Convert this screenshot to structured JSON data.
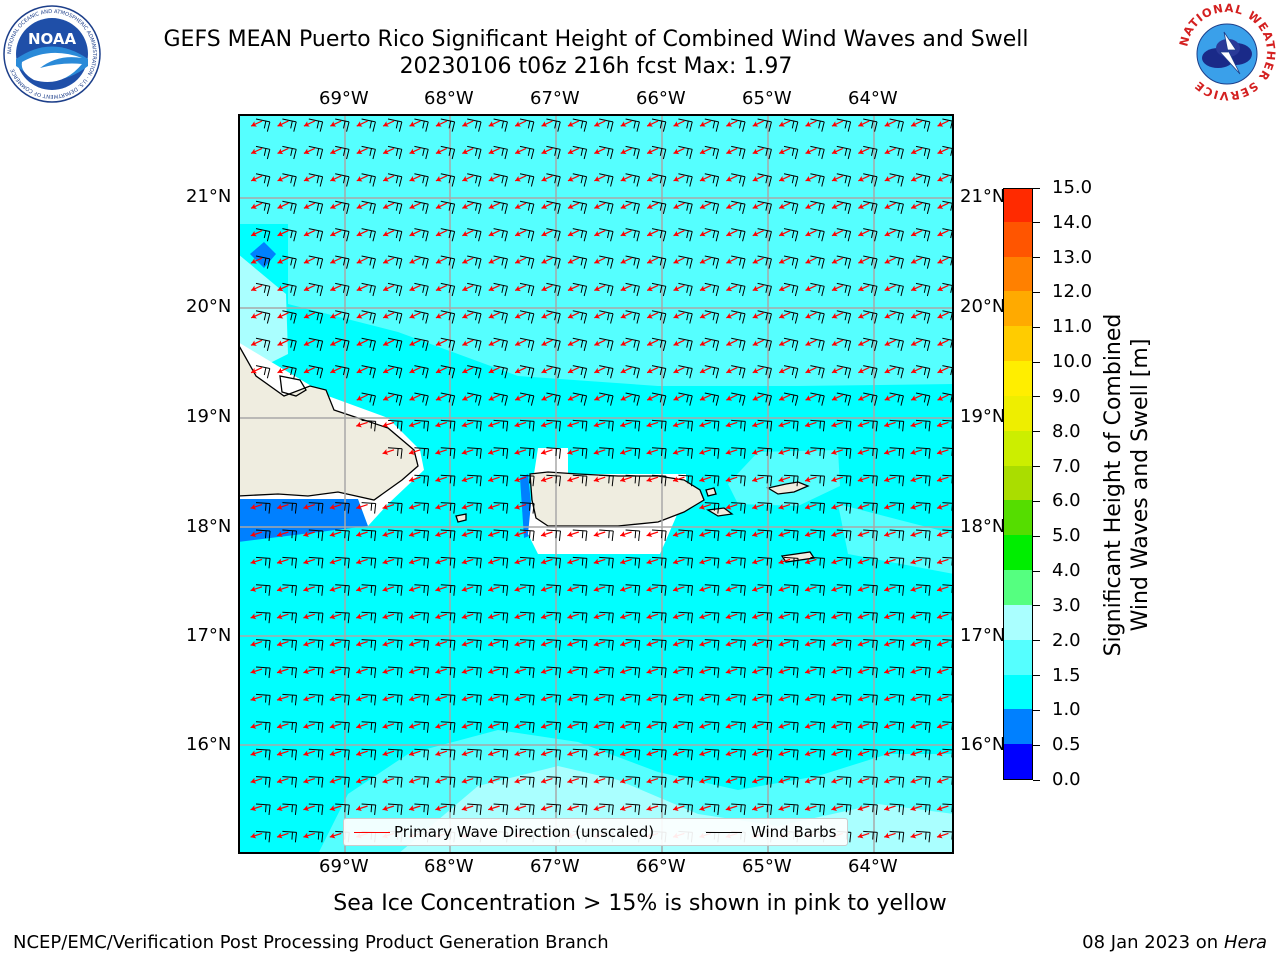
{
  "header": {
    "title_line1": "GEFS MEAN Puerto Rico Significant Height of Combined Wind Waves and Swell",
    "title_line2": "20230106 t06z 216h fcst   Max: 1.97"
  },
  "logos": [
    {
      "name": "noaa-logo",
      "text": "NOAA",
      "ring_text": "NATIONAL OCEANIC AND ATMOSPHERIC ADMINISTRATION · U.S. DEPARTMENT OF COMMERCE"
    },
    {
      "name": "nws-logo",
      "ring_text": "NATIONAL WEATHER SERVICE"
    }
  ],
  "map": {
    "lon_labels": [
      "69°W",
      "68°W",
      "67°W",
      "66°W",
      "65°W",
      "64°W"
    ],
    "lat_labels": [
      "21°N",
      "20°N",
      "19°N",
      "18°N",
      "17°N",
      "16°N"
    ],
    "colors": {
      "ocean_main": "#00ffff",
      "ocean_light": "#55ffff",
      "ocean_lighter": "#aaffff",
      "ocean_blue": "#0080ff",
      "land": "#efede0",
      "wave_arrow": "#ff0000",
      "barb": "#000000"
    }
  },
  "legend": {
    "items": [
      {
        "label": "Primary Wave Direction (unscaled)",
        "color": "#ff0000"
      },
      {
        "label": "Wind Barbs",
        "color": "#000000"
      }
    ]
  },
  "colorbar": {
    "title_line1": "Significant Height of Combined",
    "title_line2": "Wind Waves and Swell [m]",
    "ticks": [
      "0.0",
      "0.5",
      "1.0",
      "1.5",
      "2.0",
      "3.0",
      "4.0",
      "5.0",
      "6.0",
      "7.0",
      "8.0",
      "9.0",
      "10.0",
      "11.0",
      "12.0",
      "13.0",
      "14.0",
      "15.0"
    ],
    "colors": [
      "#0000ff",
      "#0080ff",
      "#00ffff",
      "#55ffff",
      "#aaffff",
      "#55ff80",
      "#00ee00",
      "#55dd00",
      "#aadd00",
      "#ccee00",
      "#eeee00",
      "#ffee00",
      "#ffcc00",
      "#ffaa00",
      "#ff8000",
      "#ff5500",
      "#ff2a00",
      "#ff0000"
    ]
  },
  "notes": {
    "sea_ice": "Sea Ice Concentration > 15% is shown in pink to yellow"
  },
  "footer": {
    "left": "NCEP/EMC/Verification Post Processing Product Generation Branch",
    "right_prefix": "08 Jan 2023 on ",
    "right_host": "Hera"
  }
}
